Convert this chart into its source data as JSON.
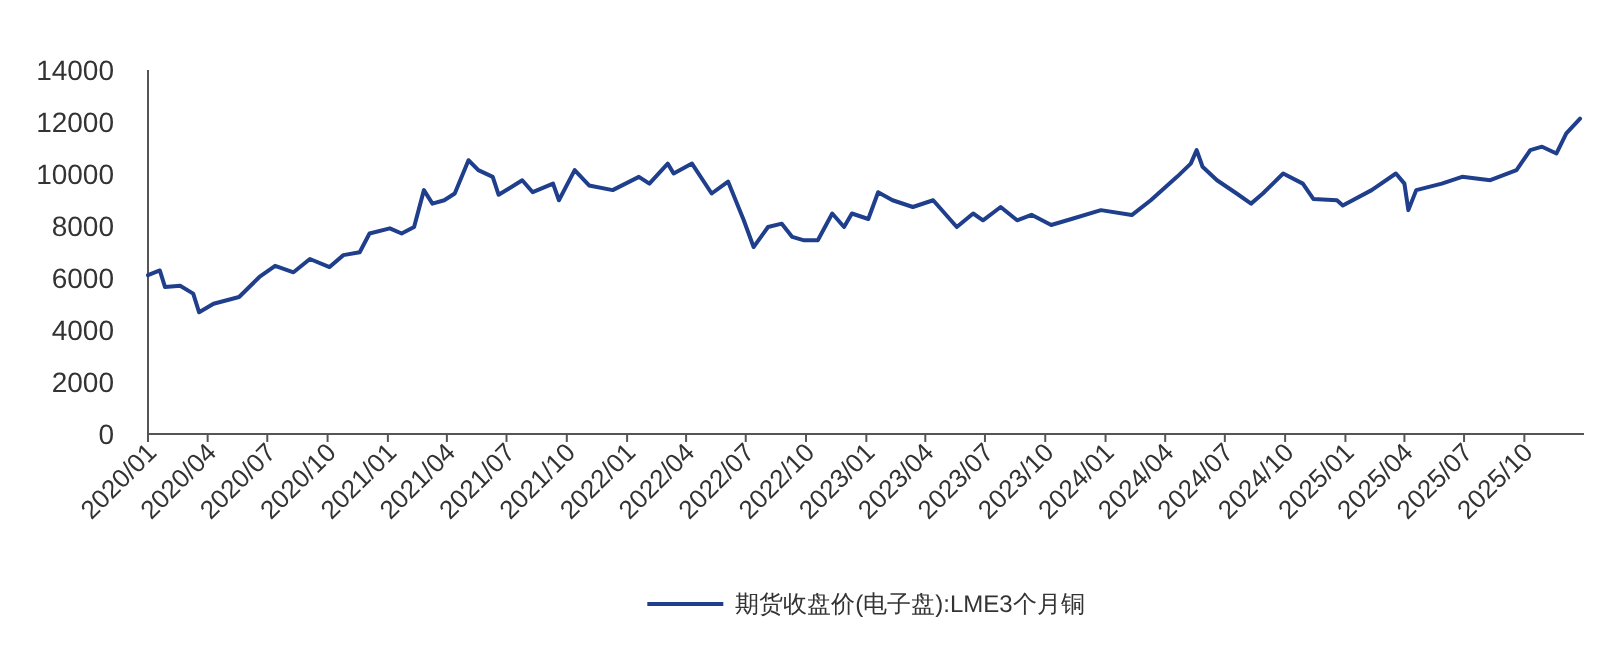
{
  "chart_data": {
    "type": "line",
    "x": [
      "2020-01-01",
      "2020-01-19",
      "2020-01-27",
      "2020-02-19",
      "2020-03-10",
      "2020-03-19",
      "2020-04-10",
      "2020-05-19",
      "2020-06-19",
      "2020-07-13",
      "2020-08-10",
      "2020-09-04",
      "2020-10-04",
      "2020-10-25",
      "2020-11-19",
      "2020-12-04",
      "2021-01-04",
      "2021-01-22",
      "2021-02-10",
      "2021-02-25",
      "2021-03-10",
      "2021-03-28",
      "2021-04-13",
      "2021-05-04",
      "2021-05-19",
      "2021-06-10",
      "2021-06-19",
      "2021-07-25",
      "2021-08-10",
      "2021-09-10",
      "2021-09-19",
      "2021-10-13",
      "2021-11-04",
      "2021-12-10",
      "2022-01-19",
      "2022-02-04",
      "2022-03-04",
      "2022-03-13",
      "2022-04-10",
      "2022-05-10",
      "2022-06-04",
      "2022-06-28",
      "2022-07-13",
      "2022-08-04",
      "2022-08-25",
      "2022-09-10",
      "2022-09-28",
      "2022-10-19",
      "2022-11-10",
      "2022-11-28",
      "2022-12-10",
      "2023-01-04",
      "2023-01-19",
      "2023-02-10",
      "2023-03-13",
      "2023-04-13",
      "2023-05-19",
      "2023-06-13",
      "2023-06-28",
      "2023-07-25",
      "2023-08-19",
      "2023-09-10",
      "2023-10-10",
      "2023-11-10",
      "2023-12-25",
      "2024-02-10",
      "2024-03-10",
      "2024-04-19",
      "2024-05-10",
      "2024-05-19",
      "2024-05-28",
      "2024-06-19",
      "2024-07-19",
      "2024-08-10",
      "2024-08-28",
      "2024-09-28",
      "2024-10-28",
      "2024-11-13",
      "2024-12-19",
      "2024-12-28",
      "2025-02-10",
      "2025-03-19",
      "2025-04-01",
      "2025-04-07",
      "2025-04-19",
      "2025-05-28",
      "2025-06-28",
      "2025-08-10",
      "2025-09-19",
      "2025-10-10",
      "2025-10-28",
      "2025-11-19",
      "2025-12-04",
      "2025-12-25"
    ],
    "series": [
      {
        "name": "期货收盘价(电子盘):LME3个月铜",
        "color": "#1f3f8c",
        "values": [
          6110,
          6290,
          5650,
          5700,
          5400,
          4680,
          5010,
          5270,
          6040,
          6470,
          6220,
          6730,
          6420,
          6880,
          6990,
          7710,
          7910,
          7710,
          7960,
          9380,
          8860,
          8990,
          9250,
          10530,
          10150,
          9890,
          9200,
          9760,
          9300,
          9630,
          8990,
          10150,
          9560,
          9380,
          9890,
          9630,
          10400,
          10020,
          10400,
          9250,
          9710,
          8220,
          7190,
          7960,
          8090,
          7580,
          7450,
          7450,
          8480,
          7960,
          8480,
          8270,
          9300,
          8990,
          8730,
          8990,
          7960,
          8480,
          8220,
          8730,
          8220,
          8430,
          8040,
          8270,
          8610,
          8420,
          8990,
          9890,
          10400,
          10920,
          10280,
          9760,
          9250,
          8860,
          9250,
          10020,
          9630,
          9040,
          8990,
          8790,
          9380,
          10020,
          9630,
          8610,
          9380,
          9630,
          9890,
          9760,
          10150,
          10920,
          11050,
          10790,
          11560,
          12130
        ]
      }
    ],
    "xlim": [
      "2020-01-01",
      "2025-12-31"
    ],
    "xticks": [
      {
        "value": "2020-01",
        "label": "2020/01"
      },
      {
        "value": "2020-04",
        "label": "2020/04"
      },
      {
        "value": "2020-07",
        "label": "2020/07"
      },
      {
        "value": "2020-10",
        "label": "2020/10"
      },
      {
        "value": "2021-01",
        "label": "2021/01"
      },
      {
        "value": "2021-04",
        "label": "2021/04"
      },
      {
        "value": "2021-07",
        "label": "2021/07"
      },
      {
        "value": "2021-10",
        "label": "2021/10"
      },
      {
        "value": "2022-01",
        "label": "2022/01"
      },
      {
        "value": "2022-04",
        "label": "2022/04"
      },
      {
        "value": "2022-07",
        "label": "2022/07"
      },
      {
        "value": "2022-10",
        "label": "2022/10"
      },
      {
        "value": "2023-01",
        "label": "2023/01"
      },
      {
        "value": "2023-04",
        "label": "2023/04"
      },
      {
        "value": "2023-07",
        "label": "2023/07"
      },
      {
        "value": "2023-10",
        "label": "2023/10"
      },
      {
        "value": "2024-01",
        "label": "2024/01"
      },
      {
        "value": "2024-04",
        "label": "2024/04"
      },
      {
        "value": "2024-07",
        "label": "2024/07"
      },
      {
        "value": "2024-10",
        "label": "2024/10"
      },
      {
        "value": "2025-01",
        "label": "2025/01"
      },
      {
        "value": "2025-04",
        "label": "2025/04"
      },
      {
        "value": "2025-07",
        "label": "2025/07"
      },
      {
        "value": "2025-10",
        "label": "2025/10"
      }
    ],
    "ylim": [
      0,
      14000
    ],
    "yticks": [
      0,
      2000,
      4000,
      6000,
      8000,
      10000,
      12000,
      14000
    ],
    "grid": false,
    "legend": "bottom",
    "marker": "none",
    "line_style": "solid"
  }
}
